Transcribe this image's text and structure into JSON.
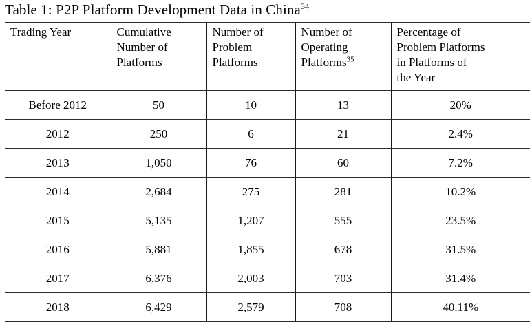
{
  "title": {
    "text": "Table 1: P2P Platform Development Data in China",
    "superscript": "34"
  },
  "table": {
    "columns": [
      {
        "lines": [
          "Trading Year"
        ],
        "sup": null
      },
      {
        "lines": [
          "Cumulative",
          "Number of",
          "Platforms"
        ],
        "sup": null
      },
      {
        "lines": [
          "Number of",
          "Problem",
          "Platforms"
        ],
        "sup": null
      },
      {
        "lines": [
          "Number of",
          "Operating",
          "Platforms"
        ],
        "sup": "35"
      },
      {
        "lines": [
          "Percentage of",
          "Problem Platforms",
          "in Platforms of",
          "the Year"
        ],
        "sup": null
      }
    ],
    "rows": [
      [
        "Before 2012",
        "50",
        "10",
        "13",
        "20%"
      ],
      [
        "2012",
        "250",
        "6",
        "21",
        "2.4%"
      ],
      [
        "2013",
        "1,050",
        "76",
        "60",
        "7.2%"
      ],
      [
        "2014",
        "2,684",
        "275",
        "281",
        "10.2%"
      ],
      [
        "2015",
        "5,135",
        "1,207",
        "555",
        "23.5%"
      ],
      [
        "2016",
        "5,881",
        "1,855",
        "678",
        "31.5%"
      ],
      [
        "2017",
        "6,376",
        "2,003",
        "703",
        "31.4%"
      ],
      [
        "2018",
        "6,429",
        "2,579",
        "708",
        "40.11%"
      ]
    ]
  },
  "chart_data": {
    "type": "table",
    "title": "Table 1: P2P Platform Development Data in China",
    "categories": [
      "Trading Year",
      "Cumulative Number of Platforms",
      "Number of Problem Platforms",
      "Number of Operating Platforms",
      "Percentage of Problem Platforms in Platforms of the Year"
    ],
    "rows": [
      [
        "Before 2012",
        50,
        10,
        13,
        "20%"
      ],
      [
        "2012",
        250,
        6,
        21,
        "2.4%"
      ],
      [
        "2013",
        1050,
        76,
        60,
        "7.2%"
      ],
      [
        "2014",
        2684,
        275,
        281,
        "10.2%"
      ],
      [
        "2015",
        5135,
        1207,
        555,
        "23.5%"
      ],
      [
        "2016",
        5881,
        1855,
        678,
        "31.5%"
      ],
      [
        "2017",
        6376,
        2003,
        703,
        "31.4%"
      ],
      [
        "2018",
        6429,
        2579,
        708,
        "40.11%"
      ]
    ]
  }
}
